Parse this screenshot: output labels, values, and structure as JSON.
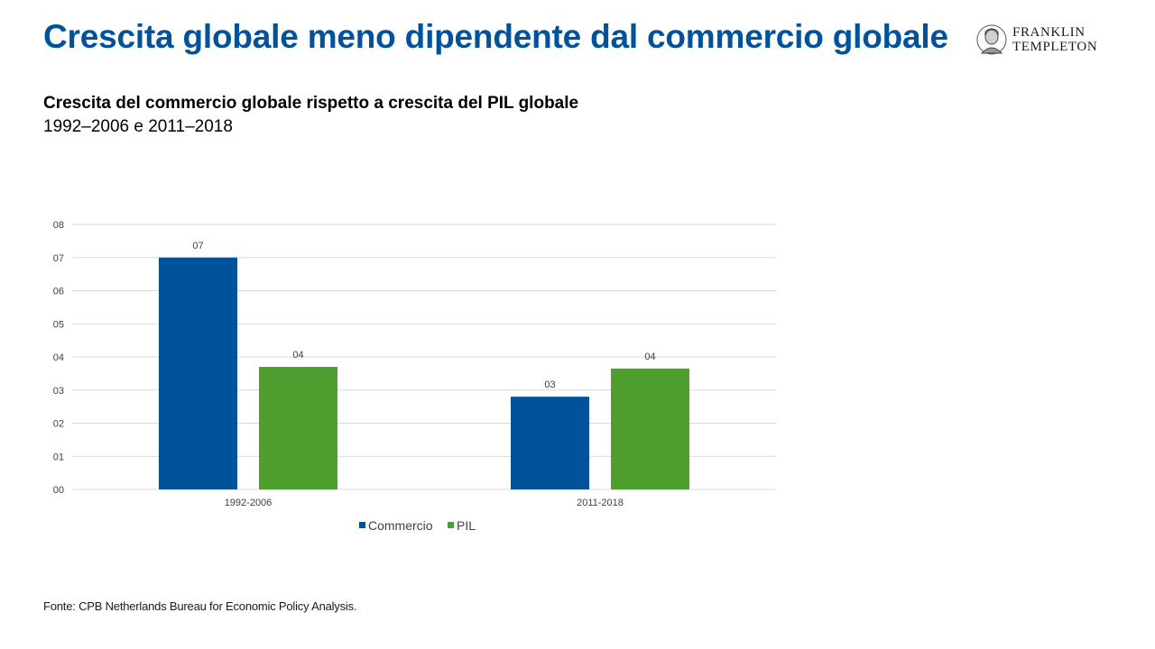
{
  "header": {
    "title": "Crescita globale meno dipendente dal commercio globale",
    "logo_line1": "FRANKLIN",
    "logo_line2": "TEMPLETON"
  },
  "chart_header": {
    "subtitle": "Crescita del commercio globale rispetto a crescita del PIL globale",
    "period": "1992–2006 e 2011–2018"
  },
  "footer": {
    "source": "Fonte: CPB Netherlands Bureau for Economic Policy Analysis."
  },
  "colors": {
    "title": "#00529b",
    "commercio": "#00529b",
    "pil": "#4f9e30",
    "grid": "#d9d9d9",
    "axis_text": "#404040"
  },
  "chart_data": {
    "type": "bar",
    "categories": [
      "1992-2006",
      "2011-2018"
    ],
    "series": [
      {
        "name": "Commercio",
        "values": [
          7.0,
          2.8
        ],
        "labels": [
          "07",
          "03"
        ]
      },
      {
        "name": "PIL",
        "values": [
          3.7,
          3.65
        ],
        "labels": [
          "04",
          "04"
        ]
      }
    ],
    "ylim": [
      0,
      8
    ],
    "yticks": [
      "00",
      "01",
      "02",
      "03",
      "04",
      "05",
      "06",
      "07",
      "08"
    ],
    "grid": true,
    "legend": "bottom"
  }
}
